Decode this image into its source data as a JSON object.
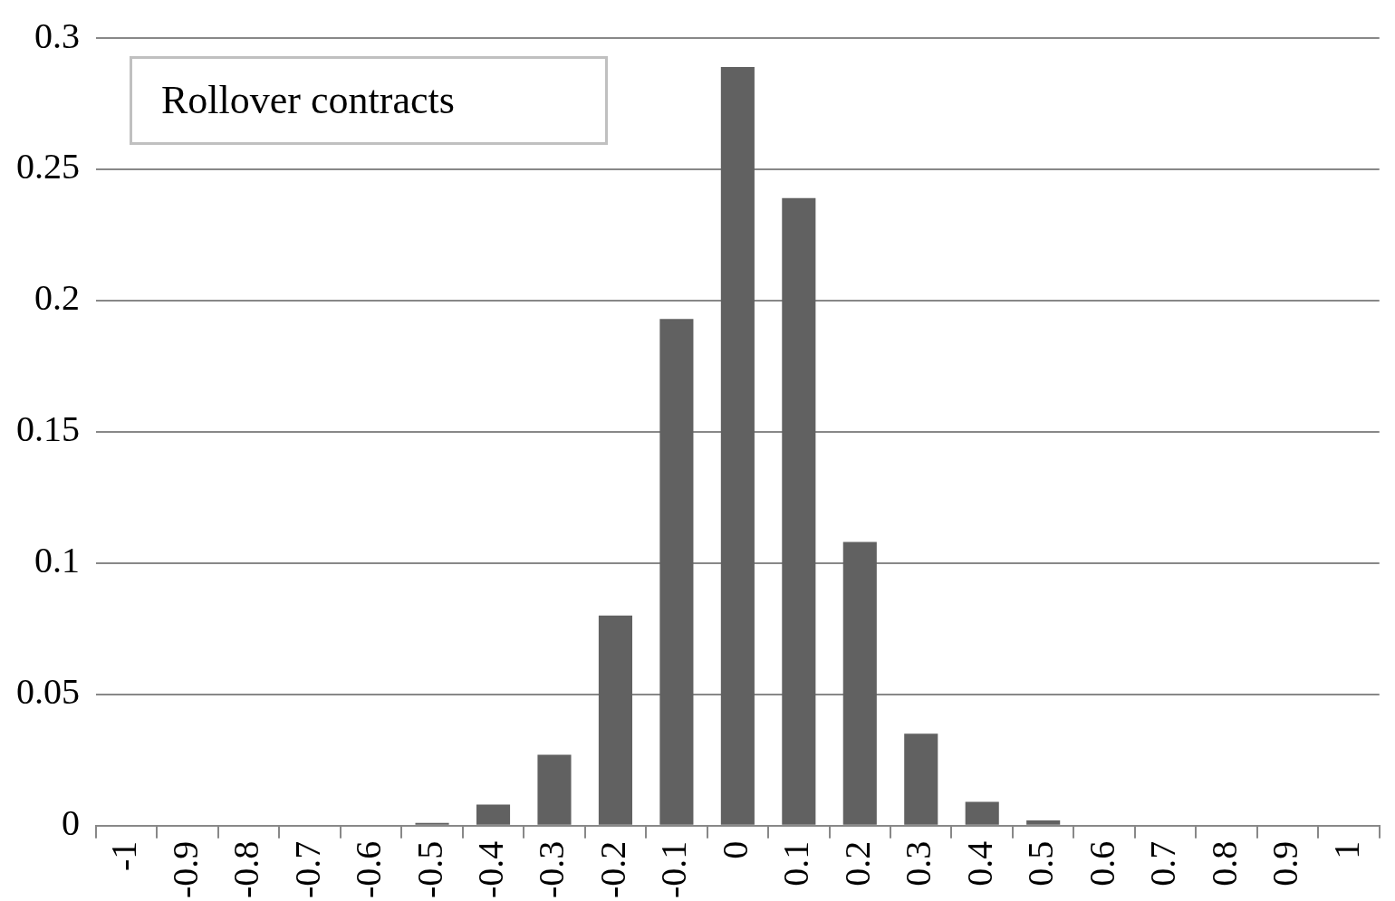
{
  "chart_data": {
    "type": "bar",
    "title": "Rollover contracts",
    "categories": [
      "-1",
      "-0.9",
      "-0.8",
      "-0.7",
      "-0.6",
      "-0.5",
      "-0.4",
      "-0.3",
      "-0.2",
      "-0.1",
      "0",
      "0.1",
      "0.2",
      "0.3",
      "0.4",
      "0.5",
      "0.6",
      "0.7",
      "0.8",
      "0.9",
      "1"
    ],
    "values": [
      0,
      0,
      0,
      0,
      0,
      0.001,
      0.008,
      0.027,
      0.08,
      0.193,
      0.289,
      0.239,
      0.108,
      0.035,
      0.009,
      0.002,
      0,
      0,
      0,
      0,
      0
    ],
    "color": "#616161",
    "ylim": [
      0,
      0.3
    ],
    "yticks": [
      0,
      0.05,
      0.1,
      0.15,
      0.2,
      0.25,
      0.3
    ],
    "grid": "y"
  }
}
